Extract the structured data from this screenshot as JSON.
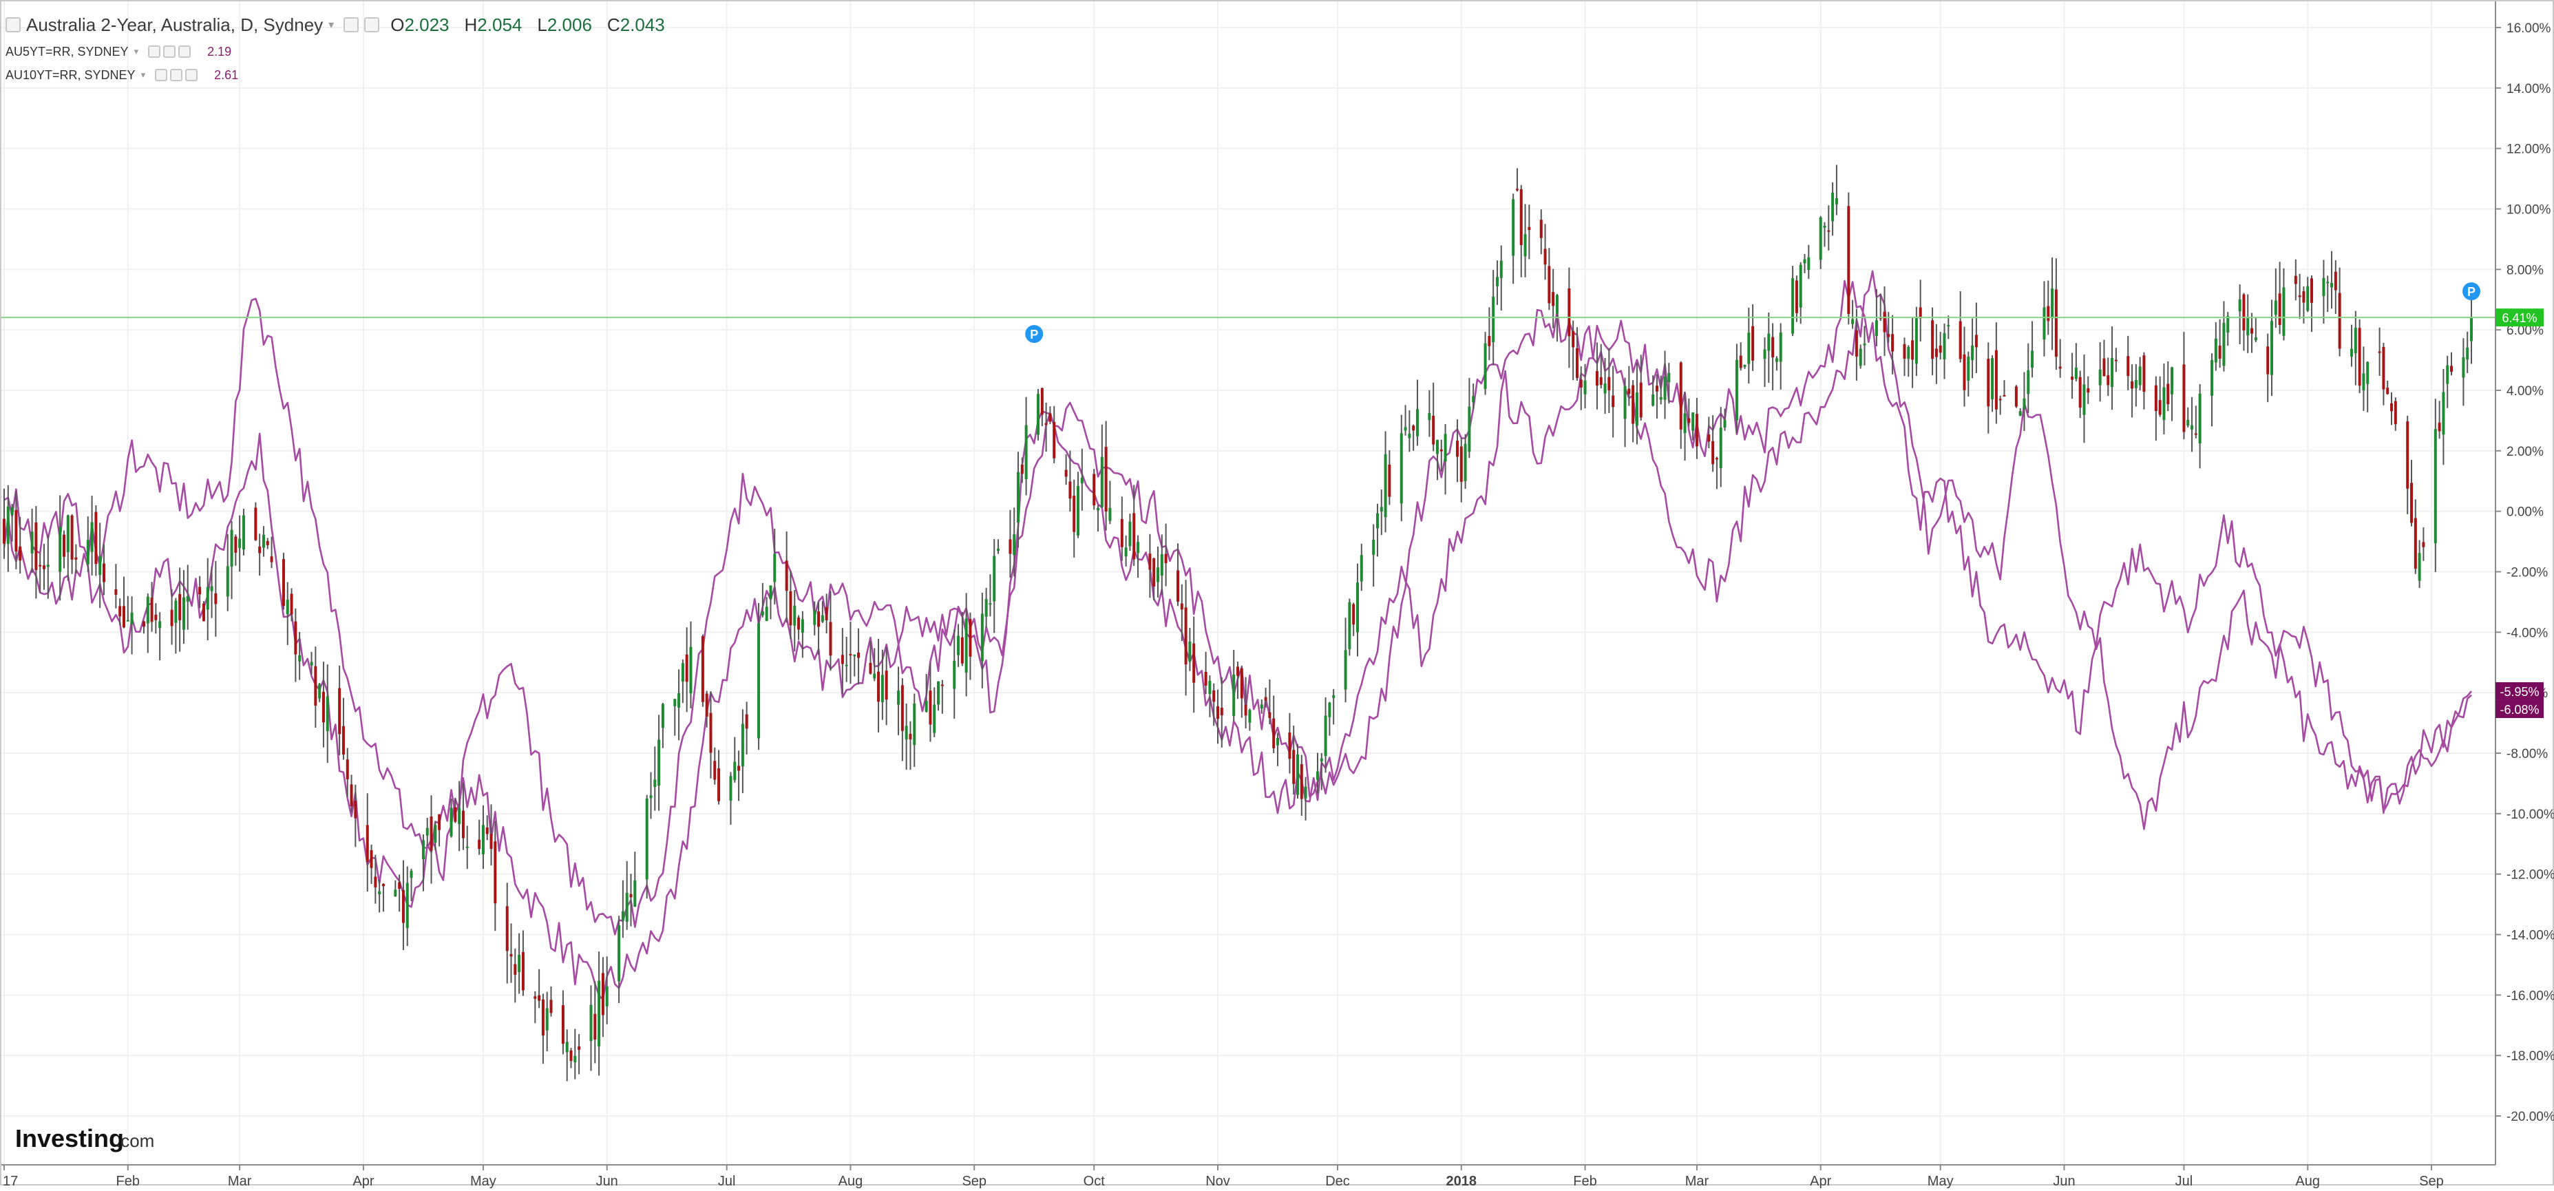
{
  "header": {
    "title": "Australia 2-Year, Australia, D, Sydney",
    "ohlc": [
      {
        "key": "O",
        "value": "2.023"
      },
      {
        "key": "H",
        "value": "2.054"
      },
      {
        "key": "L",
        "value": "2.006"
      },
      {
        "key": "C",
        "value": "2.043"
      }
    ],
    "series": [
      {
        "label": "AU5YT=RR, SYDNEY",
        "value": "2.19"
      },
      {
        "label": "AU10YT=RR, SYDNEY",
        "value": "2.61"
      }
    ]
  },
  "brand": {
    "name": "Investing",
    "suffix": ".com"
  },
  "colors": {
    "up": "#1e8a32",
    "down": "#a81414",
    "comparison": "#a64aa4",
    "price_line": "#86d686",
    "price_badge": "#22c422",
    "comparison_badge": "#7a0a5c",
    "grid": "#f0f0f0",
    "marker": "#2196f3"
  },
  "chart_data": {
    "type": "line",
    "title": "Australia 2-Year, Australia, D, Sydney",
    "xlabel": "",
    "ylabel": "",
    "ylim": [
      -21,
      16.5
    ],
    "y_ticks": [
      "16.00%",
      "14.00%",
      "12.00%",
      "10.00%",
      "8.00%",
      "6.00%",
      "4.00%",
      "2.00%",
      "0.00%",
      "-2.00%",
      "-4.00%",
      "-6.00%",
      "-8.00%",
      "-10.00%",
      "-12.00%",
      "-14.00%",
      "-16.00%",
      "-18.00%",
      "-20.00%"
    ],
    "x_ticks": [
      "17",
      "Feb",
      "Mar",
      "Apr",
      "May",
      "Jun",
      "Jul",
      "Aug",
      "Sep",
      "Oct",
      "Nov",
      "Dec",
      "2018",
      "Feb",
      "Mar",
      "Apr",
      "May",
      "Jun",
      "Jul",
      "Aug",
      "Sep"
    ],
    "x_tick_days": [
      0,
      31,
      59,
      90,
      120,
      151,
      181,
      212,
      243,
      273,
      304,
      334,
      365,
      396,
      424,
      455,
      485,
      516,
      546,
      577,
      608
    ],
    "x_domain_days": [
      0,
      618
    ],
    "grid": true,
    "legend_position": "top-left",
    "series": [
      {
        "name": "Australia 2-Year",
        "style": "candlestick",
        "points": [
          [
            0,
            -0.5
          ],
          [
            10,
            -1.5
          ],
          [
            20,
            -0.5
          ],
          [
            30,
            -4
          ],
          [
            40,
            -3
          ],
          [
            50,
            -3.5
          ],
          [
            58,
            -0.5
          ],
          [
            65,
            -1
          ],
          [
            75,
            -5
          ],
          [
            85,
            -8
          ],
          [
            93,
            -12
          ],
          [
            100,
            -13
          ],
          [
            110,
            -10
          ],
          [
            120,
            -11
          ],
          [
            128,
            -15
          ],
          [
            135,
            -17
          ],
          [
            143,
            -18.5
          ],
          [
            150,
            -16
          ],
          [
            157,
            -12
          ],
          [
            165,
            -7
          ],
          [
            172,
            -5
          ],
          [
            180,
            -10
          ],
          [
            186,
            -7
          ],
          [
            192,
            -2
          ],
          [
            200,
            -3.5
          ],
          [
            210,
            -4.5
          ],
          [
            220,
            -6
          ],
          [
            230,
            -7
          ],
          [
            240,
            -4.5
          ],
          [
            246,
            -3
          ],
          [
            252,
            -1
          ],
          [
            258,
            5
          ],
          [
            262,
            3
          ],
          [
            268,
            0
          ],
          [
            275,
            1
          ],
          [
            282,
            -1
          ],
          [
            290,
            -2
          ],
          [
            298,
            -5
          ],
          [
            305,
            -6.5
          ],
          [
            312,
            -6
          ],
          [
            320,
            -8
          ],
          [
            328,
            -9
          ],
          [
            334,
            -5
          ],
          [
            340,
            -2
          ],
          [
            346,
            1
          ],
          [
            352,
            3
          ],
          [
            358,
            2.5
          ],
          [
            365,
            1.5
          ],
          [
            372,
            6
          ],
          [
            378,
            10
          ],
          [
            386,
            8
          ],
          [
            392,
            5
          ],
          [
            400,
            4
          ],
          [
            410,
            3
          ],
          [
            418,
            4
          ],
          [
            428,
            2
          ],
          [
            436,
            5
          ],
          [
            445,
            6
          ],
          [
            452,
            8
          ],
          [
            458,
            10.5
          ],
          [
            464,
            5
          ],
          [
            470,
            6
          ],
          [
            478,
            5.5
          ],
          [
            484,
            6
          ],
          [
            490,
            5
          ],
          [
            500,
            4
          ],
          [
            505,
            3
          ],
          [
            510,
            8
          ],
          [
            518,
            4
          ],
          [
            526,
            5
          ],
          [
            534,
            4
          ],
          [
            542,
            4
          ],
          [
            550,
            3
          ],
          [
            558,
            7
          ],
          [
            566,
            5
          ],
          [
            574,
            8
          ],
          [
            582,
            7
          ],
          [
            590,
            5
          ],
          [
            598,
            4
          ],
          [
            605,
            -2
          ],
          [
            612,
            5
          ],
          [
            618,
            6.41
          ]
        ]
      },
      {
        "name": "AU5YT=RR, SYDNEY",
        "style": "line",
        "points": [
          [
            0,
            -0.5
          ],
          [
            10,
            -3
          ],
          [
            20,
            -2
          ],
          [
            30,
            -4.5
          ],
          [
            40,
            -2
          ],
          [
            50,
            -3
          ],
          [
            58,
            0.5
          ],
          [
            64,
            2
          ],
          [
            70,
            -3.5
          ],
          [
            80,
            -6
          ],
          [
            90,
            -11
          ],
          [
            100,
            -13
          ],
          [
            110,
            -10
          ],
          [
            118,
            -9
          ],
          [
            128,
            -12
          ],
          [
            138,
            -14
          ],
          [
            148,
            -16
          ],
          [
            158,
            -15
          ],
          [
            168,
            -13
          ],
          [
            176,
            -7
          ],
          [
            184,
            -4
          ],
          [
            192,
            -2.5
          ],
          [
            200,
            -5
          ],
          [
            210,
            -5.5
          ],
          [
            220,
            -4.5
          ],
          [
            230,
            -6
          ],
          [
            240,
            -3
          ],
          [
            248,
            -6.5
          ],
          [
            256,
            2
          ],
          [
            262,
            3
          ],
          [
            270,
            1
          ],
          [
            278,
            -1.5
          ],
          [
            286,
            -2
          ],
          [
            294,
            -4
          ],
          [
            304,
            -7
          ],
          [
            312,
            -8
          ],
          [
            320,
            -9.5
          ],
          [
            328,
            -9
          ],
          [
            336,
            -8
          ],
          [
            344,
            -4
          ],
          [
            350,
            -2
          ],
          [
            356,
            -5
          ],
          [
            362,
            -1.5
          ],
          [
            370,
            0
          ],
          [
            376,
            4
          ],
          [
            384,
            2
          ],
          [
            392,
            4
          ],
          [
            400,
            5
          ],
          [
            410,
            3
          ],
          [
            420,
            -1
          ],
          [
            430,
            -2.5
          ],
          [
            438,
            1
          ],
          [
            448,
            2.5
          ],
          [
            456,
            3
          ],
          [
            462,
            5
          ],
          [
            468,
            7.5
          ],
          [
            472,
            6
          ],
          [
            476,
            3.5
          ],
          [
            482,
            -1
          ],
          [
            488,
            1
          ],
          [
            494,
            -1
          ],
          [
            500,
            -2
          ],
          [
            506,
            4
          ],
          [
            512,
            2
          ],
          [
            518,
            -3
          ],
          [
            524,
            -4
          ],
          [
            530,
            -8
          ],
          [
            536,
            -10.5
          ],
          [
            540,
            -9
          ],
          [
            546,
            -7
          ],
          [
            552,
            -6
          ],
          [
            560,
            -3
          ],
          [
            568,
            -5
          ],
          [
            576,
            -4
          ],
          [
            584,
            -7
          ],
          [
            592,
            -9
          ],
          [
            598,
            -9.5
          ],
          [
            604,
            -8
          ],
          [
            610,
            -8.5
          ],
          [
            618,
            -6.08
          ]
        ]
      },
      {
        "name": "AU10YT=RR, SYDNEY",
        "style": "line",
        "points": [
          [
            0,
            1
          ],
          [
            8,
            -1
          ],
          [
            16,
            0
          ],
          [
            24,
            -1.5
          ],
          [
            32,
            2
          ],
          [
            40,
            1
          ],
          [
            48,
            0
          ],
          [
            56,
            1
          ],
          [
            62,
            7.5
          ],
          [
            70,
            4
          ],
          [
            80,
            -2
          ],
          [
            90,
            -7
          ],
          [
            100,
            -10
          ],
          [
            110,
            -12
          ],
          [
            118,
            -7
          ],
          [
            128,
            -5
          ],
          [
            138,
            -11
          ],
          [
            148,
            -13
          ],
          [
            156,
            -13.5
          ],
          [
            164,
            -12
          ],
          [
            170,
            -8
          ],
          [
            178,
            -2
          ],
          [
            186,
            1
          ],
          [
            194,
            -1
          ],
          [
            202,
            -3
          ],
          [
            210,
            -3
          ],
          [
            220,
            -3.5
          ],
          [
            230,
            -4
          ],
          [
            240,
            -3
          ],
          [
            250,
            -5
          ],
          [
            258,
            2
          ],
          [
            264,
            3.5
          ],
          [
            272,
            2
          ],
          [
            280,
            1
          ],
          [
            288,
            0
          ],
          [
            296,
            -2
          ],
          [
            304,
            -5
          ],
          [
            312,
            -6
          ],
          [
            320,
            -7.5
          ],
          [
            328,
            -9
          ],
          [
            336,
            -8.5
          ],
          [
            344,
            -7
          ],
          [
            350,
            -3
          ],
          [
            356,
            1
          ],
          [
            362,
            2
          ],
          [
            370,
            4
          ],
          [
            378,
            5
          ],
          [
            386,
            6.5
          ],
          [
            394,
            5.5
          ],
          [
            402,
            6
          ],
          [
            410,
            5
          ],
          [
            418,
            4
          ],
          [
            426,
            2
          ],
          [
            432,
            3.5
          ],
          [
            440,
            2.5
          ],
          [
            448,
            3.5
          ],
          [
            456,
            4.5
          ],
          [
            462,
            7.5
          ],
          [
            468,
            6
          ],
          [
            474,
            3.5
          ],
          [
            480,
            0
          ],
          [
            486,
            0.5
          ],
          [
            492,
            -2
          ],
          [
            498,
            -4
          ],
          [
            504,
            -4.5
          ],
          [
            510,
            -5
          ],
          [
            516,
            -6
          ],
          [
            520,
            -7
          ],
          [
            526,
            -3
          ],
          [
            534,
            -1.5
          ],
          [
            540,
            -2.5
          ],
          [
            548,
            -3.5
          ],
          [
            556,
            -0.5
          ],
          [
            562,
            -2
          ],
          [
            568,
            -4
          ],
          [
            576,
            -7
          ],
          [
            584,
            -8.5
          ],
          [
            590,
            -9
          ],
          [
            598,
            -9.5
          ],
          [
            604,
            -8
          ],
          [
            612,
            -7
          ],
          [
            618,
            -5.95
          ]
        ]
      }
    ],
    "current_values": [
      {
        "series": "Australia 2-Year",
        "label": "6.41%"
      },
      {
        "series": "AU10YT=RR, SYDNEY",
        "label": "-5.95%"
      },
      {
        "series": "AU5YT=RR, SYDNEY",
        "label": "-6.08%"
      }
    ],
    "events": [
      {
        "day": 258,
        "label": "P"
      },
      {
        "day": 618,
        "label": "P"
      }
    ]
  }
}
